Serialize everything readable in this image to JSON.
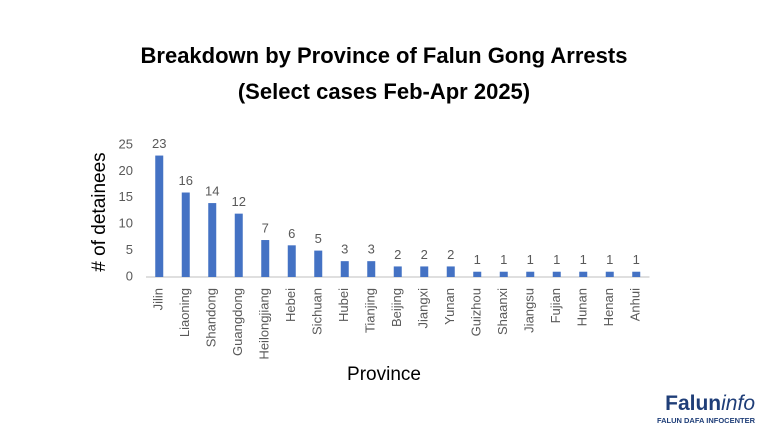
{
  "chart_data": {
    "type": "bar",
    "title": "Breakdown by Province of Falun Gong Arrests",
    "subtitle": "(Select cases Feb-Apr 2025)",
    "y_label": "# of detainees",
    "x_label": "Province",
    "categories": [
      "Jilin",
      "Liaoning",
      "Shandong",
      "Guangdong",
      "Heilongjiang",
      "Hebei",
      "Sichuan",
      "Hubei",
      "Tianjing",
      "Beijing",
      "Jiangxi",
      "Yunan",
      "Guizhou",
      "Shaanxi",
      "Jiangsu",
      "Fujian",
      "Hunan",
      "Henan",
      "Anhui"
    ],
    "values": [
      23,
      16,
      14,
      12,
      7,
      6,
      5,
      3,
      3,
      2,
      2,
      2,
      1,
      1,
      1,
      1,
      1,
      1,
      1
    ],
    "color": "#4472c4",
    "ylim": [
      0,
      25
    ],
    "yticks": [
      0,
      5,
      10,
      15,
      20,
      25
    ],
    "grid": false
  },
  "logo": {
    "brand": "Falun",
    "brand_suffix": "info",
    "tagline": "FALUN DAFA INFOCENTER"
  }
}
